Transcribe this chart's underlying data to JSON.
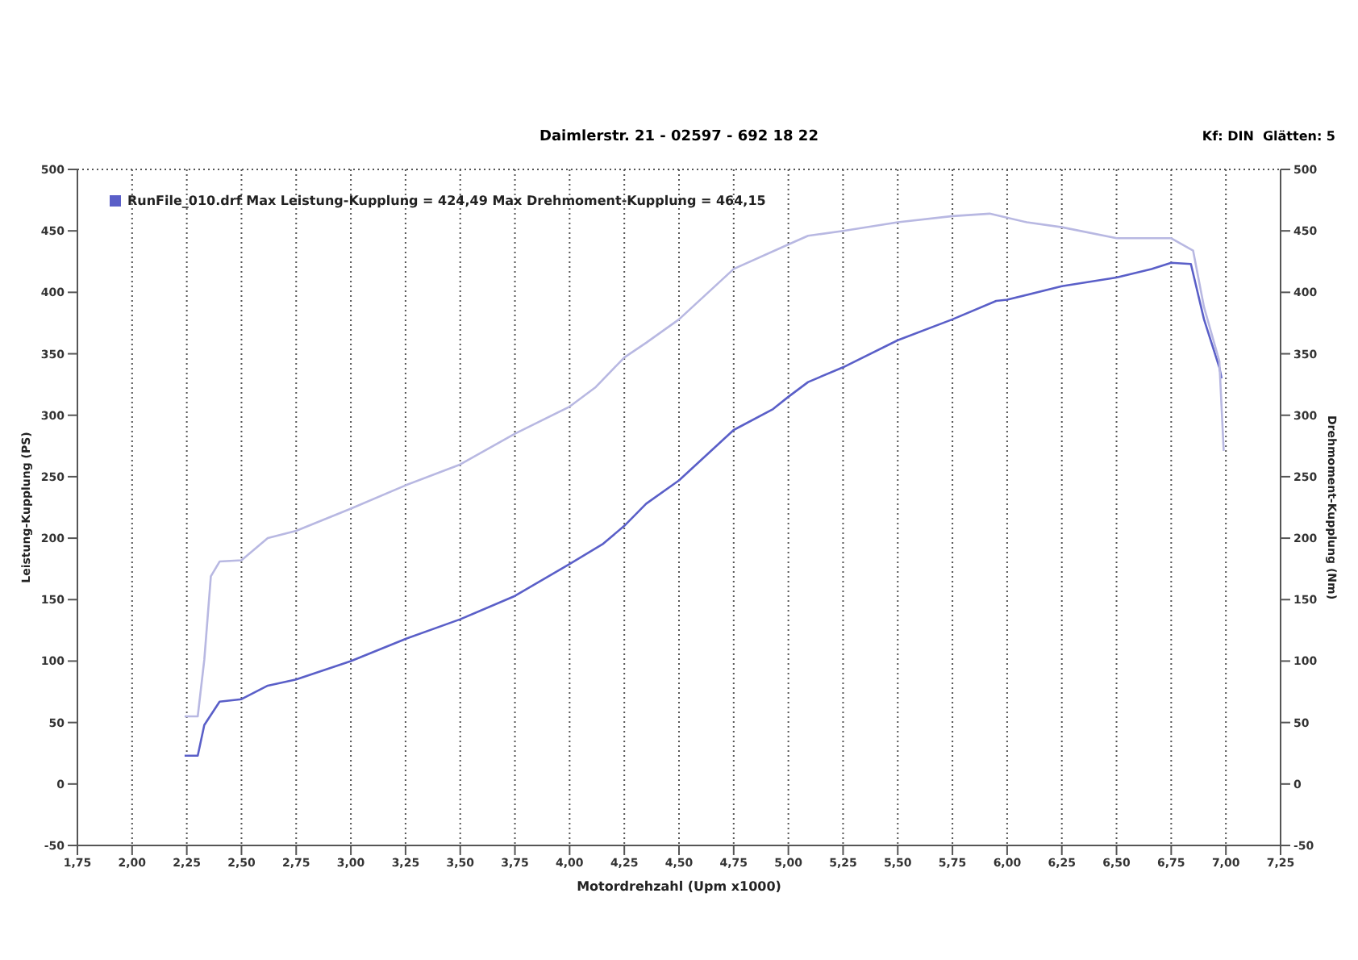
{
  "chart_data": {
    "type": "line",
    "subtitle": "Daimlerstr. 21 - 02597 - 692 18 22",
    "annotations": [
      "Kf: DIN  Glätten: 5"
    ],
    "xlabel": "Motordrehzahl (Upm x1000)",
    "ylabel": "Leistung-Kupplung (PS)",
    "y2label": "Drehmoment-Kupplung (Nm)",
    "xlim": [
      1.75,
      7.25
    ],
    "xticks": [
      {
        "value": 1.75,
        "label": "1,75"
      },
      {
        "value": 2,
        "label": "2,00"
      },
      {
        "value": 2.25,
        "label": "2,25"
      },
      {
        "value": 2.5,
        "label": "2,50"
      },
      {
        "value": 2.75,
        "label": "2,75"
      },
      {
        "value": 3,
        "label": "3,00"
      },
      {
        "value": 3.25,
        "label": "3,25"
      },
      {
        "value": 3.5,
        "label": "3,50"
      },
      {
        "value": 3.75,
        "label": "3,75"
      },
      {
        "value": 4,
        "label": "4,00"
      },
      {
        "value": 4.25,
        "label": "4,25"
      },
      {
        "value": 4.5,
        "label": "4,50"
      },
      {
        "value": 4.75,
        "label": "4,75"
      },
      {
        "value": 5,
        "label": "5,00"
      },
      {
        "value": 5.25,
        "label": "5,25"
      },
      {
        "value": 5.5,
        "label": "5,50"
      },
      {
        "value": 5.75,
        "label": "5,75"
      },
      {
        "value": 6,
        "label": "6,00"
      },
      {
        "value": 6.25,
        "label": "6,25"
      },
      {
        "value": 6.5,
        "label": "6,50"
      },
      {
        "value": 6.75,
        "label": "6,75"
      },
      {
        "value": 7,
        "label": "7,00"
      },
      {
        "value": 7.25,
        "label": "7,25"
      }
    ],
    "ylim": [
      -50,
      500
    ],
    "yticks": [
      -50,
      0,
      50,
      100,
      150,
      200,
      250,
      300,
      350,
      400,
      450,
      500
    ],
    "y2lim": [
      -50,
      500
    ],
    "y2ticks": [
      -50,
      0,
      50,
      100,
      150,
      200,
      250,
      300,
      350,
      400,
      450,
      500
    ],
    "grid": true,
    "legend": "top left",
    "marker": "none",
    "line_style": "solid",
    "series": [
      {
        "name": "RunFile_010.drf Max Leistung-Kupplung = 424,49    Max Drehmoment-Kupplung = 464,15",
        "color": "#5a5fc8",
        "x": [
          2.24,
          2.3,
          2.33,
          2.4,
          2.5,
          2.62,
          2.75,
          3.0,
          3.25,
          3.5,
          3.75,
          4.0,
          4.15,
          4.25,
          4.35,
          4.5,
          4.75,
          4.93,
          5.0,
          5.09,
          5.25,
          5.5,
          5.75,
          5.95,
          6.0,
          6.25,
          6.5,
          6.66,
          6.75,
          6.84,
          6.9,
          6.97,
          6.98
        ],
        "values": [
          23,
          23,
          48,
          67,
          69,
          80,
          85,
          100,
          118,
          134,
          153,
          179,
          195,
          210,
          228,
          247,
          288,
          305,
          315,
          327,
          339,
          361,
          378,
          393,
          394,
          405,
          412,
          419,
          424,
          423,
          378,
          339,
          330
        ]
      },
      {
        "color": "#b8b8e2",
        "axis": "y2",
        "x": [
          2.24,
          2.3,
          2.33,
          2.36,
          2.4,
          2.5,
          2.62,
          2.75,
          3.0,
          3.25,
          3.5,
          3.75,
          4.0,
          4.12,
          4.25,
          4.35,
          4.5,
          4.75,
          5.0,
          5.09,
          5.25,
          5.5,
          5.75,
          5.92,
          6.09,
          6.25,
          6.5,
          6.75,
          6.85,
          6.9,
          6.97,
          6.99
        ],
        "values": [
          55,
          55,
          101,
          169,
          181,
          182,
          200,
          206,
          224,
          243,
          260,
          285,
          307,
          323,
          347,
          359,
          378,
          419,
          439,
          446,
          450,
          457,
          462,
          464,
          457,
          453,
          444,
          444,
          434,
          388,
          344,
          271
        ]
      }
    ]
  }
}
